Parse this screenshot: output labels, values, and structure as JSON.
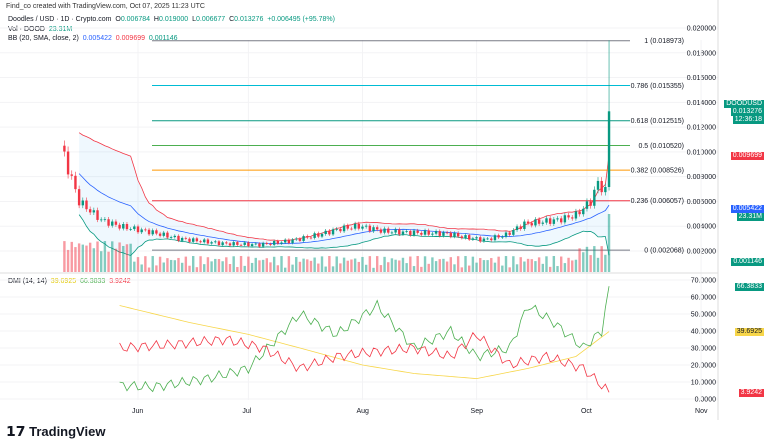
{
  "header": "Find_co created with TradingView.com, Oct 07, 2025 11:23 UTC",
  "legend": {
    "symbol": "Doodles / USD · 1D · Crypto.com",
    "o_label": "O",
    "o": "0.006784",
    "h_label": "H",
    "h": "0.019000",
    "l_label": "L",
    "l": "0.006677",
    "c_label": "C",
    "c": "0.013276",
    "change": "+0.006495 (+95.78%)",
    "vol_label": "Vol · DOOD",
    "vol": "23.31M",
    "bb_label": "BB (20, SMA, close, 2)",
    "bb_basis": "0.005422",
    "bb_upper": "0.009699",
    "bb_lower": "0.001146",
    "dmi_label": "DMI (14, 14)",
    "adx": "39.6925",
    "plus_di": "66.3833",
    "minus_di": "3.9242"
  },
  "tags": {
    "symbol": "DOODUSD",
    "price": "0.013276",
    "countdown": "12:36:18",
    "bb_upper": "0.009699",
    "bb_basis": "0.005422",
    "vol": "23.31M",
    "bb_lower": "0.001146",
    "plus_di": "66.3833",
    "adx": "39.6925",
    "minus_di": "3.9242"
  },
  "colors": {
    "up": "#089981",
    "down": "#f23645",
    "basis": "#2962ff",
    "adx": "#f7d64a",
    "plus_di": "#4caf50",
    "minus_di": "#f23645"
  },
  "brand": "TradingView",
  "chart_data": [
    {
      "type": "candlestick",
      "price_axis": [
        "0.020000",
        "0.018000",
        "0.016000",
        "0.014000",
        "0.012000",
        "0.010000",
        "0.008000",
        "0.006000",
        "0.004000",
        "0.002000"
      ],
      "ylim": [
        0.0015,
        0.0205
      ],
      "x_ticks": [
        "Jun",
        "Jul",
        "Aug",
        "Sep",
        "Oct",
        "Nov"
      ],
      "fib_levels": [
        {
          "label": "1 (0.018973)",
          "value": 0.018973,
          "color": "#787b86"
        },
        {
          "label": "0.786 (0.015355)",
          "value": 0.015355,
          "color": "#00bcd4"
        },
        {
          "label": "0.618 (0.012515)",
          "value": 0.012515,
          "color": "#089981"
        },
        {
          "label": "0.5 (0.010520)",
          "value": 0.01052,
          "color": "#4caf50"
        },
        {
          "label": "0.382 (0.008526)",
          "value": 0.008526,
          "color": "#ff9800"
        },
        {
          "label": "0.236 (0.006057)",
          "value": 0.006057,
          "color": "#f23645"
        },
        {
          "label": "0 (0.002068)",
          "value": 0.002068,
          "color": "#787b86"
        }
      ],
      "close_keypoints": [
        [
          "2025-05-11",
          0.0105
        ],
        [
          "2025-05-16",
          0.006
        ],
        [
          "2025-05-22",
          0.0045
        ],
        [
          "2025-05-27",
          0.004
        ],
        [
          "2025-06-05",
          0.0035
        ],
        [
          "2025-06-12",
          0.003
        ],
        [
          "2025-06-24",
          0.0026
        ],
        [
          "2025-07-04",
          0.0025
        ],
        [
          "2025-07-12",
          0.0028
        ],
        [
          "2025-07-20",
          0.0033
        ],
        [
          "2025-07-26",
          0.0038
        ],
        [
          "2025-07-31",
          0.004
        ],
        [
          "2025-08-07",
          0.0036
        ],
        [
          "2025-08-13",
          0.0035
        ],
        [
          "2025-08-24",
          0.0034
        ],
        [
          "2025-08-29",
          0.0031
        ],
        [
          "2025-09-03",
          0.0029
        ],
        [
          "2025-09-09",
          0.0033
        ],
        [
          "2025-09-14",
          0.0042
        ],
        [
          "2025-09-23",
          0.0045
        ],
        [
          "2025-09-28",
          0.0049
        ],
        [
          "2025-10-02",
          0.006
        ],
        [
          "2025-10-04",
          0.0075
        ],
        [
          "2025-10-06",
          0.0068
        ],
        [
          "2025-10-07",
          0.013276
        ]
      ]
    },
    {
      "type": "line",
      "title": "DMI (14, 14)",
      "y_axis": [
        "70.0000",
        "60.0000",
        "50.0000",
        "40.0000",
        "30.0000",
        "20.0000",
        "10.0000",
        "0.0000"
      ],
      "ylim": [
        0,
        70
      ],
      "series": [
        {
          "name": "ADX",
          "values": [
            [
              "2025-05-27",
              55
            ],
            [
              "2025-06-15",
              45
            ],
            [
              "2025-07-01",
              38
            ],
            [
              "2025-07-15",
              30
            ],
            [
              "2025-08-01",
              20
            ],
            [
              "2025-08-15",
              15
            ],
            [
              "2025-09-01",
              12
            ],
            [
              "2025-09-15",
              18
            ],
            [
              "2025-09-28",
              25
            ],
            [
              "2025-10-07",
              39.69
            ]
          ]
        },
        {
          "name": "+DI",
          "values": [
            [
              "2025-05-27",
              8
            ],
            [
              "2025-06-05",
              7
            ],
            [
              "2025-06-20",
              12
            ],
            [
              "2025-07-01",
              18
            ],
            [
              "2025-07-15",
              50
            ],
            [
              "2025-07-25",
              38
            ],
            [
              "2025-08-05",
              55
            ],
            [
              "2025-08-15",
              30
            ],
            [
              "2025-08-25",
              40
            ],
            [
              "2025-09-01",
              25
            ],
            [
              "2025-09-10",
              30
            ],
            [
              "2025-09-15",
              55
            ],
            [
              "2025-09-22",
              45
            ],
            [
              "2025-09-30",
              30
            ],
            [
              "2025-10-05",
              40
            ],
            [
              "2025-10-07",
              66.38
            ]
          ]
        },
        {
          "name": "-DI",
          "values": [
            [
              "2025-05-27",
              30
            ],
            [
              "2025-06-10",
              32
            ],
            [
              "2025-06-25",
              35
            ],
            [
              "2025-07-05",
              30
            ],
            [
              "2025-07-15",
              18
            ],
            [
              "2025-07-25",
              25
            ],
            [
              "2025-08-05",
              28
            ],
            [
              "2025-08-15",
              30
            ],
            [
              "2025-08-25",
              25
            ],
            [
              "2025-09-01",
              38
            ],
            [
              "2025-09-10",
              20
            ],
            [
              "2025-09-20",
              25
            ],
            [
              "2025-09-30",
              18
            ],
            [
              "2025-10-05",
              8
            ],
            [
              "2025-10-07",
              3.92
            ]
          ]
        }
      ]
    }
  ]
}
